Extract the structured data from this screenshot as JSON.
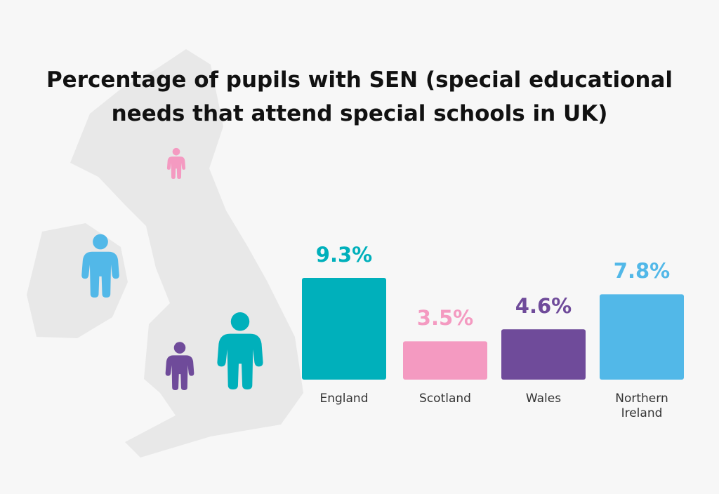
{
  "chart_data": {
    "type": "bar",
    "title": "Percentage of pupils with SEN (special educational needs that attend special schools in UK)",
    "categories": [
      "England",
      "Scotland",
      "Wales",
      "Northern Ireland"
    ],
    "values": [
      9.3,
      3.5,
      4.6,
      7.8
    ],
    "value_labels": [
      "9.3%",
      "3.5%",
      "4.6%",
      "7.8%"
    ],
    "colors": [
      "#00b0bb",
      "#f49ac1",
      "#6f4b9a",
      "#52b8e8"
    ]
  }
}
